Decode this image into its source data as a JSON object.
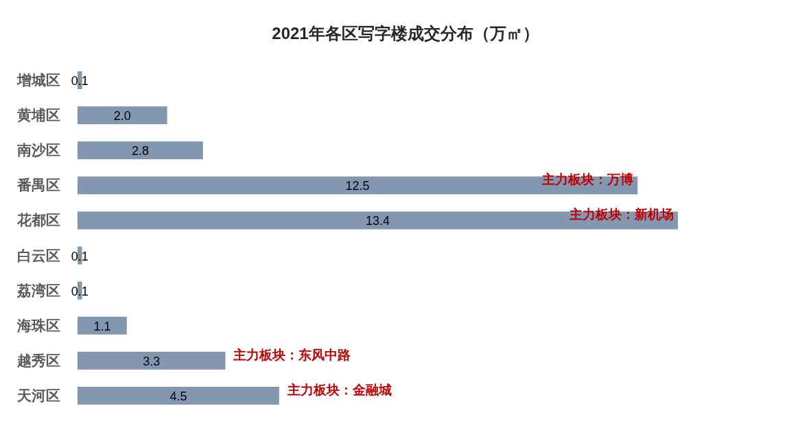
{
  "chart_data": {
    "type": "bar",
    "orientation": "horizontal",
    "title": "2021年各区写字楼成交分布（万㎡）",
    "categories": [
      "增城区",
      "黄埔区",
      "南沙区",
      "番禺区",
      "花都区",
      "白云区",
      "荔湾区",
      "海珠区",
      "越秀区",
      "天河区"
    ],
    "values": [
      0.1,
      2.0,
      2.8,
      12.5,
      13.4,
      0.1,
      0.1,
      1.1,
      3.3,
      4.5
    ],
    "value_labels": [
      "0.1",
      "2.0",
      "2.8",
      "12.5",
      "13.4",
      "0.1",
      "0.1",
      "1.1",
      "3.3",
      "4.5"
    ],
    "color": "#8497b0",
    "annotations": [
      {
        "text": "主力板块：万博",
        "x": 12.5,
        "y": "番禺区"
      },
      {
        "text": "主力板块：新机场",
        "x": 13.4,
        "y": "花都区"
      },
      {
        "text": "主力板块：东风中路",
        "x": 3.3,
        "y": "越秀区"
      },
      {
        "text": "主力板块：金融城",
        "x": 4.5,
        "y": "天河区"
      }
    ]
  }
}
